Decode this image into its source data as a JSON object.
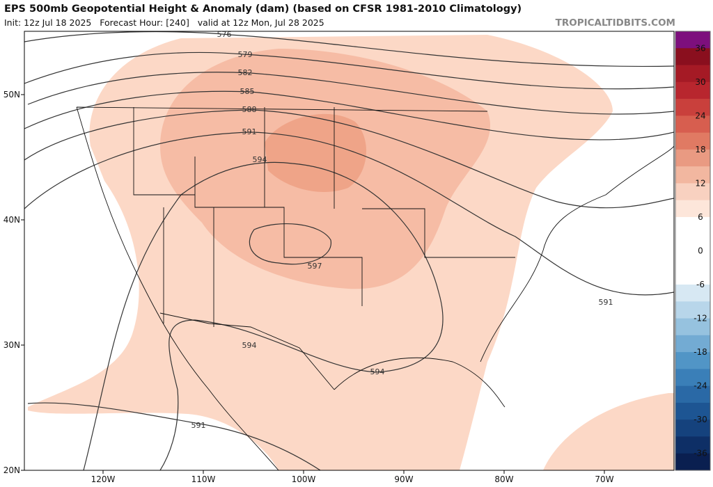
{
  "header": {
    "title": "EPS 500mb Geopotential Height & Anomaly (dam) (based on CFSR 1981-2010 Climatology)",
    "subtitle": "Init: 12z Jul 18 2025   Forecast Hour: [240]   valid at 12z Mon, Jul 28 2025",
    "watermark": "TROPICALTIDBITS.COM"
  },
  "map": {
    "latitude_labels": [
      "50N",
      "40N",
      "30N",
      "20N"
    ],
    "longitude_labels": [
      "120W",
      "110W",
      "100W",
      "90W",
      "80W",
      "70W"
    ],
    "contour_labels": [
      "576",
      "579",
      "582",
      "585",
      "588",
      "591",
      "594",
      "597",
      "594",
      "594",
      "591",
      "591"
    ]
  },
  "colorbar": {
    "ticks": [
      "36",
      "30",
      "24",
      "18",
      "12",
      "6",
      "0",
      "-6",
      "-12",
      "-18",
      "-24",
      "-30",
      "-36"
    ],
    "colors": [
      "#7d0f7d",
      "#8a0f1e",
      "#a51a25",
      "#b8262e",
      "#c9403c",
      "#d75e4f",
      "#e07a63",
      "#e99a82",
      "#f2b7a0",
      "#f8d1c0",
      "#fde6da",
      "#ffffff",
      "#ffffff",
      "#ffffff",
      "#ffffff",
      "#d7e8f3",
      "#b8d6ea",
      "#96c2df",
      "#73abd3",
      "#5195c6",
      "#3a7fb8",
      "#2a69a6",
      "#1d5593",
      "#15427d",
      "#0e2f66",
      "#0a1f50"
    ]
  }
}
